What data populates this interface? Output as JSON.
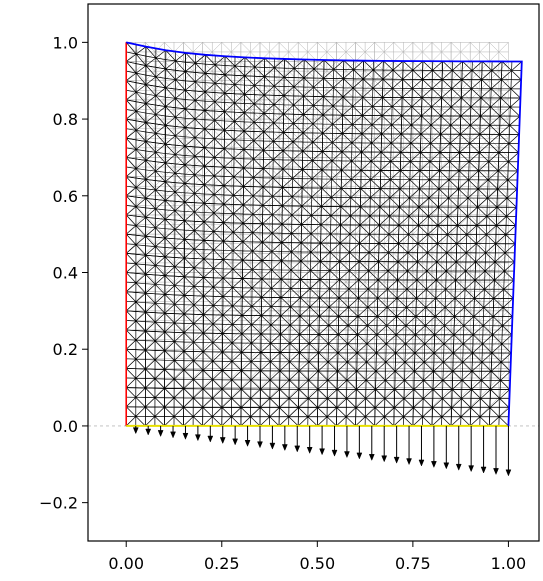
{
  "chart_data": {
    "type": "mesh",
    "title": "",
    "xlabel": "",
    "ylabel": "",
    "xlim": [
      -0.1,
      1.08
    ],
    "ylim": [
      -0.3,
      1.1
    ],
    "grid": false,
    "legend": "none",
    "x_ticks": [
      "0.00",
      "0.25",
      "0.50",
      "0.75",
      "1.00"
    ],
    "x_tick_values": [
      0.0,
      0.25,
      0.5,
      0.75,
      1.0
    ],
    "y_ticks": [
      "−0.2",
      "0.0",
      "0.2",
      "0.4",
      "0.6",
      "0.8",
      "1.0"
    ],
    "y_tick_values": [
      -0.2,
      0.0,
      0.2,
      0.4,
      0.6,
      0.8,
      1.0
    ],
    "reference_line": {
      "y": 0.0,
      "style": "dashed",
      "color": "#bbbbbb"
    },
    "undeformed_domain": {
      "x": [
        0.0,
        1.0
      ],
      "y": [
        0.0,
        1.0
      ],
      "color": "#b0b0b0"
    },
    "mesh": {
      "divisions": 20,
      "deformed_corners": {
        "bottom_left": [
          0.0,
          0.0
        ],
        "bottom_right": [
          1.0,
          0.0
        ],
        "top_left": [
          0.0,
          1.0
        ],
        "top_right": [
          1.035,
          0.95
        ]
      },
      "top_edge_sag": [
        0.0,
        -0.045,
        -0.082,
        -0.11,
        -0.13,
        -0.145,
        -0.157,
        -0.166,
        -0.173,
        -0.179,
        -0.184,
        -0.188,
        -0.191,
        -0.193,
        -0.195,
        -0.196,
        -0.197,
        -0.198,
        -0.198,
        -0.199,
        -0.2
      ]
    },
    "boundaries": {
      "left": {
        "color": "#ff0000"
      },
      "bottom": {
        "color": "#e8e000"
      },
      "right_and_top": {
        "color": "#0000ff"
      }
    },
    "load_arrows": {
      "count": 31,
      "from_x": 0.025,
      "to_x": 1.0,
      "length_start": 0.02,
      "length_end": 0.13,
      "color": "#000000"
    }
  }
}
